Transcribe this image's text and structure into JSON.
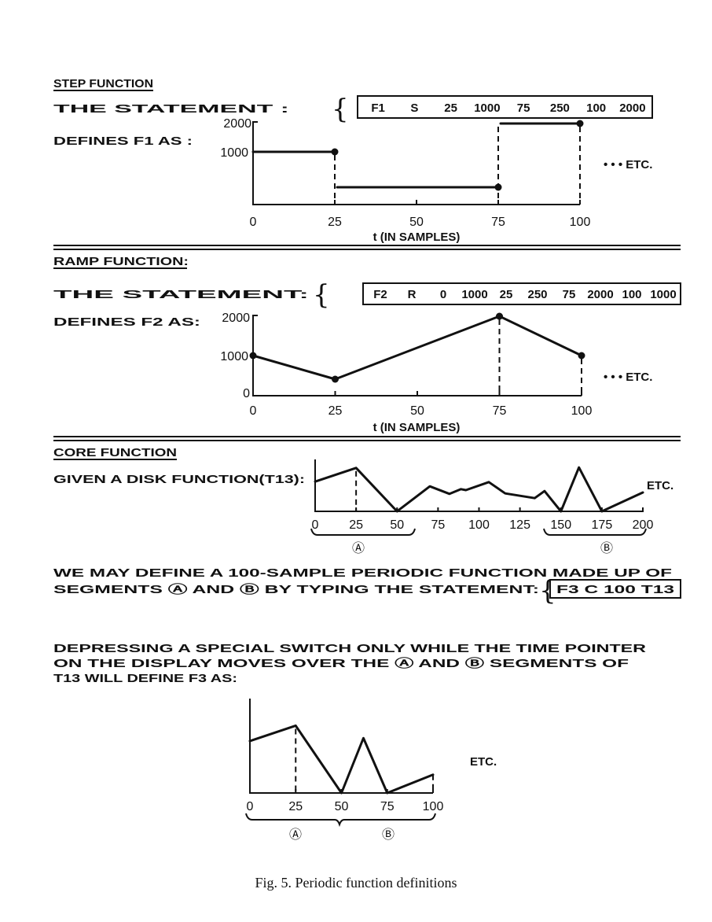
{
  "step": {
    "title": "STEP FUNCTION",
    "statement_label": "THE STATEMENT :",
    "statement": [
      "F1",
      "S",
      "25",
      "1000",
      "75",
      "250",
      "100",
      "2000"
    ],
    "defines": "DEFINES F1 AS :",
    "y_ticks": [
      "2000",
      "1000"
    ],
    "x_ticks": [
      "0",
      "25",
      "50",
      "75",
      "100"
    ],
    "xlabel": "t (IN SAMPLES)",
    "etc": "• • • ETC.",
    "segments": [
      {
        "from": 0,
        "to": 25,
        "value": 1000
      },
      {
        "from": 25,
        "to": 75,
        "value": 250
      },
      {
        "from": 75,
        "to": 100,
        "value": 2000
      }
    ]
  },
  "ramp": {
    "title": "RAMP FUNCTION:",
    "statement_label": "THE STATEMENT:",
    "statement": [
      "F2",
      "R",
      "0",
      "1000",
      "25",
      "250",
      "75",
      "2000",
      "100",
      "1000"
    ],
    "defines": "DEFINES F2 AS:",
    "y_ticks": [
      "2000",
      "1000",
      "0"
    ],
    "x_ticks": [
      "0",
      "25",
      "50",
      "75",
      "100"
    ],
    "xlabel": "t (IN SAMPLES)",
    "etc": "• • • ETC.",
    "points": [
      [
        0,
        1000
      ],
      [
        25,
        250
      ],
      [
        75,
        2000
      ],
      [
        100,
        1000
      ]
    ]
  },
  "core": {
    "title": "CORE FUNCTION",
    "given": "GIVEN A DISK FUNCTION(T13):",
    "x_ticks": [
      "0",
      "25",
      "50",
      "75",
      "100",
      "125",
      "150",
      "175",
      "200"
    ],
    "etc": "ETC.",
    "segment_a": "Ⓐ",
    "segment_b": "Ⓑ",
    "disk_curve": [
      [
        0,
        0.63
      ],
      [
        25,
        0.92
      ],
      [
        50,
        0
      ],
      [
        70,
        0.53
      ],
      [
        82,
        0.37
      ],
      [
        89,
        0.47
      ],
      [
        92,
        0.45
      ],
      [
        106,
        0.62
      ],
      [
        116,
        0.38
      ],
      [
        134,
        0.28
      ],
      [
        140,
        0.43
      ],
      [
        150,
        0
      ],
      [
        161,
        0.93
      ],
      [
        175,
        0
      ],
      [
        200,
        0.4
      ]
    ],
    "text_line_1": "WE MAY DEFINE A 100-SAMPLE PERIODIC FUNCTION MADE UP OF",
    "text_line_2": "SEGMENTS Ⓐ AND Ⓑ BY TYPING THE STATEMENT:",
    "statement": "F3 C 100 T13",
    "text_line_3": "DEPRESSING A SPECIAL SWITCH ONLY WHILE THE TIME POINTER",
    "text_line_4": "ON THE DISPLAY MOVES OVER THE Ⓐ AND Ⓑ SEGMENTS OF",
    "text_line_5": "T13 WILL DEFINE F3 AS:",
    "result_x_ticks": [
      "0",
      "25",
      "50",
      "75",
      "100"
    ],
    "result_etc": "ETC.",
    "result_curve": [
      [
        0,
        0.71
      ],
      [
        25,
        0.92
      ],
      [
        50,
        0
      ],
      [
        62,
        0.75
      ],
      [
        75,
        0
      ],
      [
        100,
        0.25
      ]
    ]
  },
  "caption": "Fig. 5.  Periodic function definitions"
}
